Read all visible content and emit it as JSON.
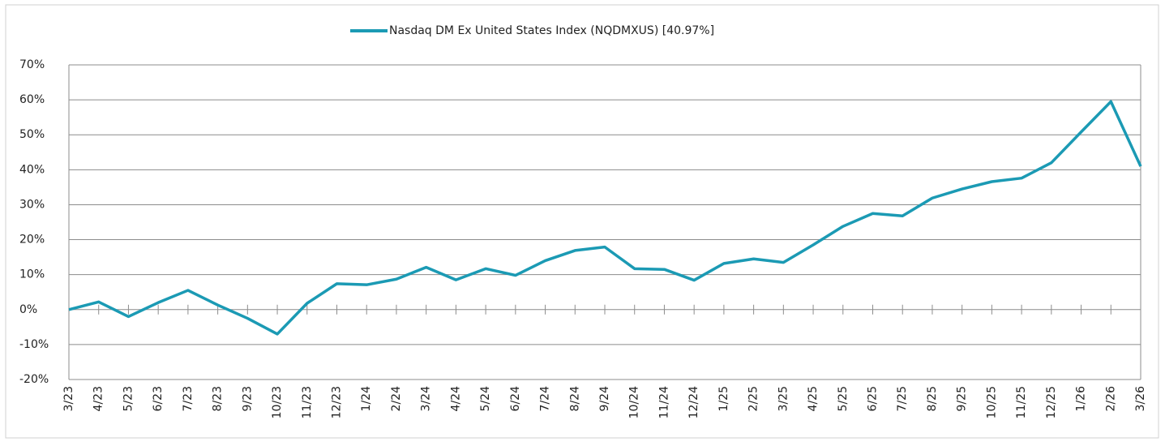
{
  "chart_data": {
    "type": "line",
    "categories": [
      "3/23",
      "4/23",
      "5/23",
      "6/23",
      "7/23",
      "8/23",
      "9/23",
      "10/23",
      "11/23",
      "12/23",
      "1/24",
      "2/24",
      "3/24",
      "4/24",
      "5/24",
      "6/24",
      "7/24",
      "8/24",
      "9/24",
      "10/24",
      "11/24",
      "12/24",
      "1/25",
      "2/25",
      "3/25",
      "4/25",
      "5/25",
      "6/25",
      "7/25",
      "8/25",
      "9/25",
      "10/25",
      "11/25",
      "12/25",
      "1/26",
      "2/26",
      "3/26"
    ],
    "series": [
      {
        "name": "Nasdaq DM Ex United States Index (NQDMXUS) [40.97%]",
        "color": "#1b9ab4",
        "values": [
          0,
          2.2,
          -2,
          2,
          5.5,
          1.3,
          -2.5,
          -7,
          1.8,
          7.4,
          7.1,
          8.7,
          12.1,
          8.5,
          11.7,
          9.8,
          14,
          16.9,
          17.9,
          11.7,
          11.5,
          8.4,
          13.2,
          14.5,
          13.5,
          18.5,
          23.8,
          27.5,
          26.8,
          31.9,
          34.5,
          36.6,
          37.6,
          42,
          50.8,
          59.5,
          40.97
        ]
      }
    ],
    "ylim": [
      -20,
      70
    ],
    "yticks": [
      {
        "value": -20,
        "label": "-20%"
      },
      {
        "value": -10,
        "label": "-10%"
      },
      {
        "value": 0,
        "label": "0%"
      },
      {
        "value": 10,
        "label": "10%"
      },
      {
        "value": 20,
        "label": "20%"
      },
      {
        "value": 30,
        "label": "30%"
      },
      {
        "value": 40,
        "label": "40%"
      },
      {
        "value": 50,
        "label": "50%"
      },
      {
        "value": 60,
        "label": "60%"
      },
      {
        "value": 70,
        "label": "70%"
      }
    ],
    "grid": true,
    "legend": "top"
  }
}
